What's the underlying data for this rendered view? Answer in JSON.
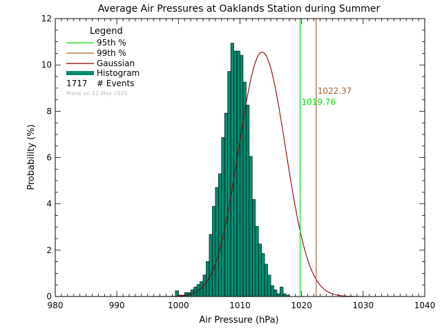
{
  "chart_data": {
    "type": "bar",
    "title": "Average Air Pressures at Oaklands Station during Summer",
    "xlabel": "Air Pressure (hPa)",
    "ylabel": "Probability (%)",
    "xlim": [
      980,
      1040
    ],
    "ylim": [
      0,
      12
    ],
    "x_ticks": [
      "980",
      "990",
      "1000",
      "1010",
      "1020",
      "1030",
      "1040"
    ],
    "y_ticks": [
      "0",
      "2",
      "4",
      "6",
      "8",
      "10",
      "12"
    ],
    "bin_width": 0.5,
    "histogram": {
      "name": "Histogram",
      "color": "#008B70",
      "bins": [
        {
          "x": 999.5,
          "y": 0.25
        },
        {
          "x": 1000.0,
          "y": 0.06
        },
        {
          "x": 1000.5,
          "y": 0.06
        },
        {
          "x": 1001.0,
          "y": 0.17
        },
        {
          "x": 1001.5,
          "y": 0.17
        },
        {
          "x": 1002.0,
          "y": 0.29
        },
        {
          "x": 1002.5,
          "y": 0.41
        },
        {
          "x": 1003.0,
          "y": 0.52
        },
        {
          "x": 1003.5,
          "y": 0.64
        },
        {
          "x": 1004.0,
          "y": 0.93
        },
        {
          "x": 1004.5,
          "y": 1.51
        },
        {
          "x": 1005.0,
          "y": 2.68
        },
        {
          "x": 1005.5,
          "y": 3.9
        },
        {
          "x": 1006.0,
          "y": 4.71
        },
        {
          "x": 1006.5,
          "y": 5.3
        },
        {
          "x": 1007.0,
          "y": 6.87
        },
        {
          "x": 1007.5,
          "y": 7.92
        },
        {
          "x": 1008.0,
          "y": 9.72
        },
        {
          "x": 1008.5,
          "y": 10.94
        },
        {
          "x": 1009.0,
          "y": 10.6
        },
        {
          "x": 1009.5,
          "y": 10.6
        },
        {
          "x": 1010.0,
          "y": 10.42
        },
        {
          "x": 1010.5,
          "y": 9.26
        },
        {
          "x": 1011.0,
          "y": 8.27
        },
        {
          "x": 1011.5,
          "y": 6.05
        },
        {
          "x": 1012.0,
          "y": 4.19
        },
        {
          "x": 1012.5,
          "y": 3.03
        },
        {
          "x": 1013.0,
          "y": 2.27
        },
        {
          "x": 1013.5,
          "y": 1.86
        },
        {
          "x": 1014.0,
          "y": 1.4
        },
        {
          "x": 1014.5,
          "y": 0.93
        },
        {
          "x": 1015.0,
          "y": 0.47
        },
        {
          "x": 1015.5,
          "y": 0.29
        },
        {
          "x": 1016.0,
          "y": 0.12
        },
        {
          "x": 1016.5,
          "y": 0.41
        },
        {
          "x": 1017.0,
          "y": 0.12
        },
        {
          "x": 1017.5,
          "y": 0.06
        }
      ]
    },
    "gaussian": {
      "name": "Gaussian",
      "color": "#8B0000",
      "mean": 1013.6,
      "sigma": 3.8,
      "peak": 10.55
    },
    "percentiles": [
      {
        "name": "95th %",
        "value": 1019.76,
        "label": "1019.76",
        "color": "#00E000"
      },
      {
        "name": "99th %",
        "value": 1022.37,
        "label": "1022.37",
        "color": "#A0622D"
      }
    ],
    "legend": {
      "title": "Legend",
      "placement": "top-left",
      "events_count": "1717",
      "events_label": "# Events",
      "note": "Made on 22 May 2025"
    }
  }
}
